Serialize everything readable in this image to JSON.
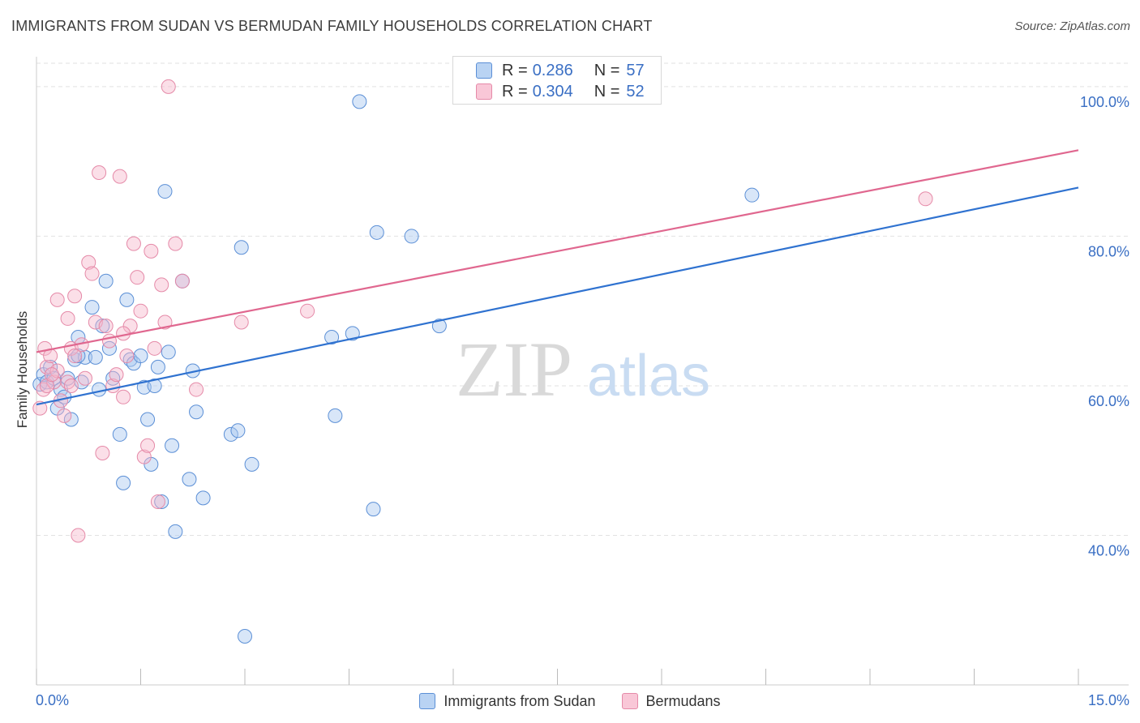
{
  "header": {
    "title": "IMMIGRANTS FROM SUDAN VS BERMUDAN FAMILY HOUSEHOLDS CORRELATION CHART",
    "source": "Source: ZipAtlas.com"
  },
  "legend": {
    "rows": [
      {
        "r_label": "R =",
        "r_value": "0.286",
        "n_label": "N =",
        "n_value": "57"
      },
      {
        "r_label": "R =",
        "r_value": "0.304",
        "n_label": "N =",
        "n_value": "52"
      }
    ]
  },
  "watermark": {
    "zip": "ZIP",
    "atlas": "atlas"
  },
  "colors": {
    "blue_fill": "#a8c8f0",
    "blue_stroke": "#5b8fd6",
    "blue_line": "#2f72d0",
    "pink_fill": "#f7b7cc",
    "pink_stroke": "#e58aa8",
    "pink_line": "#e0678f",
    "axis_text": "#3a6fc4",
    "grid": "#e2e2e2"
  },
  "chart_data": {
    "type": "scatter",
    "title": "IMMIGRANTS FROM SUDAN VS BERMUDAN FAMILY HOUSEHOLDS CORRELATION CHART",
    "xlabel": "",
    "ylabel": "Family Households",
    "xlim": [
      0,
      15
    ],
    "ylim": [
      20,
      104
    ],
    "x_ticks": [
      0,
      1.5,
      3,
      4.5,
      6,
      7.5,
      9,
      10.5,
      12,
      13.5,
      15
    ],
    "x_tick_labels": [
      "0.0%",
      "",
      "",
      "",
      "",
      "",
      "",
      "",
      "",
      "",
      "15.0%"
    ],
    "y_ticks": [
      40,
      60,
      80,
      100
    ],
    "y_tick_labels": [
      "40.0%",
      "60.0%",
      "80.0%",
      "100.0%"
    ],
    "grid": "horizontal dashed",
    "legend_position": "top-center",
    "series": [
      {
        "name": "Immigrants from Sudan",
        "color": "blue",
        "r": 0.286,
        "n": 57,
        "trend": {
          "x": [
            0,
            15
          ],
          "y": [
            57.5,
            86.5
          ]
        },
        "points": [
          [
            0.05,
            60.2
          ],
          [
            0.1,
            61.5
          ],
          [
            0.15,
            60.5
          ],
          [
            0.2,
            62.5
          ],
          [
            0.25,
            61.0
          ],
          [
            0.3,
            57.0
          ],
          [
            0.35,
            59.5
          ],
          [
            0.4,
            58.5
          ],
          [
            0.45,
            61.0
          ],
          [
            0.5,
            55.5
          ],
          [
            0.55,
            63.5
          ],
          [
            0.6,
            66.5
          ],
          [
            0.65,
            60.5
          ],
          [
            0.7,
            63.8
          ],
          [
            0.8,
            70.5
          ],
          [
            0.85,
            63.8
          ],
          [
            0.9,
            59.5
          ],
          [
            0.95,
            68.0
          ],
          [
            1.0,
            74.0
          ],
          [
            1.05,
            65.0
          ],
          [
            1.1,
            61.0
          ],
          [
            1.2,
            53.5
          ],
          [
            1.25,
            47.0
          ],
          [
            1.3,
            71.5
          ],
          [
            1.35,
            63.5
          ],
          [
            1.4,
            63.0
          ],
          [
            1.5,
            64.0
          ],
          [
            1.55,
            59.8
          ],
          [
            1.6,
            55.5
          ],
          [
            1.65,
            49.5
          ],
          [
            1.7,
            60.0
          ],
          [
            1.75,
            62.5
          ],
          [
            1.8,
            44.5
          ],
          [
            1.85,
            86.0
          ],
          [
            1.9,
            64.5
          ],
          [
            1.95,
            52.0
          ],
          [
            2.0,
            40.5
          ],
          [
            2.1,
            74.0
          ],
          [
            2.2,
            47.5
          ],
          [
            2.25,
            62.0
          ],
          [
            2.3,
            56.5
          ],
          [
            2.4,
            45.0
          ],
          [
            2.8,
            53.5
          ],
          [
            2.9,
            54.0
          ],
          [
            2.95,
            78.5
          ],
          [
            3.0,
            26.5
          ],
          [
            3.1,
            49.5
          ],
          [
            4.25,
            66.5
          ],
          [
            4.3,
            56.0
          ],
          [
            4.55,
            67.0
          ],
          [
            4.65,
            98.0
          ],
          [
            4.85,
            43.5
          ],
          [
            4.9,
            80.5
          ],
          [
            5.4,
            80.0
          ],
          [
            5.8,
            68.0
          ],
          [
            10.3,
            85.5
          ],
          [
            0.6,
            64.0
          ]
        ]
      },
      {
        "name": "Bermudans",
        "color": "pink",
        "r": 0.304,
        "n": 52,
        "trend": {
          "x": [
            0,
            15
          ],
          "y": [
            64.5,
            91.5
          ]
        },
        "points": [
          [
            0.05,
            57.0
          ],
          [
            0.1,
            59.5
          ],
          [
            0.12,
            65.0
          ],
          [
            0.15,
            62.5
          ],
          [
            0.2,
            64.0
          ],
          [
            0.25,
            60.5
          ],
          [
            0.3,
            71.5
          ],
          [
            0.35,
            58.0
          ],
          [
            0.4,
            56.0
          ],
          [
            0.45,
            69.0
          ],
          [
            0.5,
            65.0
          ],
          [
            0.55,
            72.0
          ],
          [
            0.6,
            40.0
          ],
          [
            0.65,
            65.5
          ],
          [
            0.7,
            61.0
          ],
          [
            0.75,
            76.5
          ],
          [
            0.8,
            75.0
          ],
          [
            0.85,
            68.5
          ],
          [
            0.9,
            88.5
          ],
          [
            0.95,
            51.0
          ],
          [
            1.0,
            68.0
          ],
          [
            1.05,
            66.0
          ],
          [
            1.1,
            60.0
          ],
          [
            1.15,
            61.5
          ],
          [
            1.2,
            88.0
          ],
          [
            1.25,
            58.5
          ],
          [
            1.3,
            64.0
          ],
          [
            1.35,
            68.0
          ],
          [
            1.4,
            79.0
          ],
          [
            1.45,
            74.5
          ],
          [
            1.5,
            70.0
          ],
          [
            1.55,
            50.5
          ],
          [
            1.6,
            52.0
          ],
          [
            1.65,
            78.0
          ],
          [
            1.7,
            65.0
          ],
          [
            1.75,
            44.5
          ],
          [
            1.8,
            73.5
          ],
          [
            1.85,
            68.5
          ],
          [
            1.9,
            100.0
          ],
          [
            2.0,
            79.0
          ],
          [
            2.1,
            74.0
          ],
          [
            2.3,
            59.5
          ],
          [
            2.95,
            68.5
          ],
          [
            3.9,
            70.0
          ],
          [
            12.8,
            85.0
          ],
          [
            0.15,
            60.0
          ],
          [
            0.3,
            62.0
          ],
          [
            0.45,
            60.5
          ],
          [
            0.5,
            60.0
          ],
          [
            0.22,
            61.5
          ],
          [
            1.25,
            67.0
          ],
          [
            0.55,
            64.0
          ]
        ]
      }
    ]
  },
  "bottom_legend": {
    "items": [
      {
        "label": "Immigrants from Sudan"
      },
      {
        "label": "Bermudans"
      }
    ]
  }
}
